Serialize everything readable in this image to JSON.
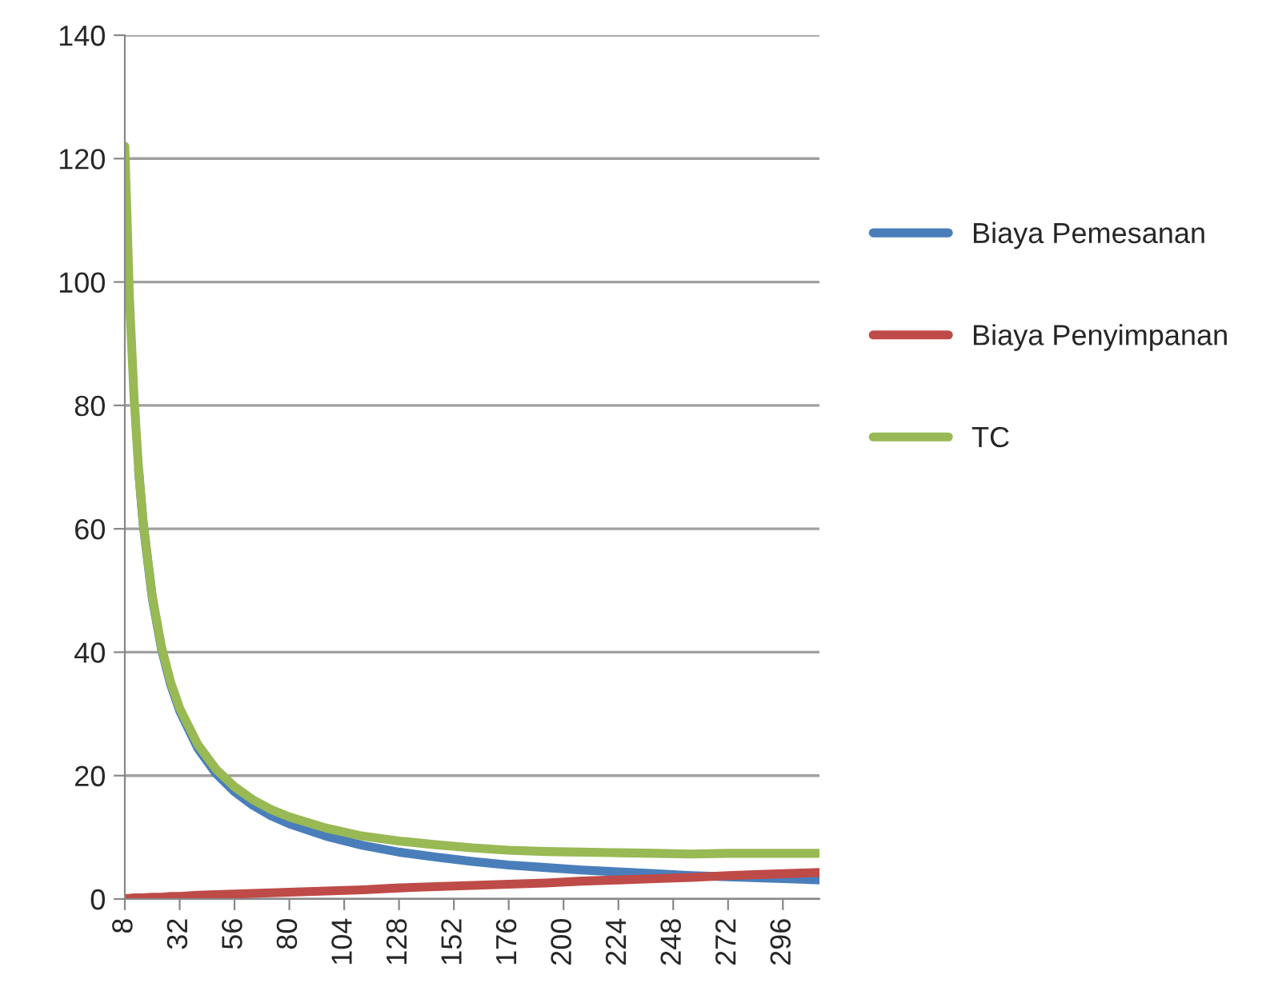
{
  "chart_data": {
    "type": "line",
    "x": [
      8,
      10,
      12,
      14,
      16,
      20,
      24,
      28,
      32,
      40,
      48,
      56,
      64,
      72,
      80,
      96,
      112,
      128,
      144,
      160,
      176,
      192,
      208,
      224,
      240,
      256,
      272,
      288,
      304,
      312
    ],
    "series": [
      {
        "name": "Biaya Pemesanan",
        "color": "#4a7ebb",
        "values": [
          null,
          null,
          null,
          69.6,
          60.9,
          48.8,
          40.6,
          34.8,
          30.5,
          24.4,
          20.3,
          17.4,
          15.2,
          13.5,
          12.2,
          10.2,
          8.7,
          7.6,
          6.8,
          6.1,
          5.5,
          5.1,
          4.7,
          4.4,
          4.1,
          3.8,
          3.6,
          3.4,
          3.2,
          3.1
        ]
      },
      {
        "name": "Biaya Penyimpanan",
        "color": "#be4b48",
        "values": [
          0.1,
          0.1,
          0.2,
          0.2,
          0.2,
          0.3,
          0.3,
          0.4,
          0.4,
          0.6,
          0.7,
          0.8,
          0.9,
          1.0,
          1.1,
          1.3,
          1.5,
          1.8,
          2.0,
          2.2,
          2.4,
          2.6,
          2.9,
          3.1,
          3.3,
          3.5,
          3.8,
          4.0,
          4.2,
          4.3
        ]
      },
      {
        "name": "TC",
        "color": "#98b954",
        "values": [
          122.0,
          97.6,
          81.5,
          69.8,
          61.1,
          49.1,
          40.9,
          35.2,
          30.9,
          25.0,
          21.0,
          18.2,
          16.1,
          14.5,
          13.3,
          11.5,
          10.2,
          9.4,
          8.8,
          8.3,
          7.9,
          7.7,
          7.6,
          7.5,
          7.4,
          7.3,
          7.4,
          7.4,
          7.4,
          7.4
        ]
      }
    ],
    "xlim": [
      8,
      312
    ],
    "xticks": [
      8,
      32,
      56,
      80,
      104,
      128,
      152,
      176,
      200,
      224,
      248,
      272,
      296
    ],
    "ylim": [
      0,
      140
    ],
    "yticks": [
      0,
      20,
      40,
      60,
      80,
      100,
      120,
      140
    ],
    "grid": "y",
    "legend": "right",
    "marker": "none",
    "line_style": "solid"
  }
}
